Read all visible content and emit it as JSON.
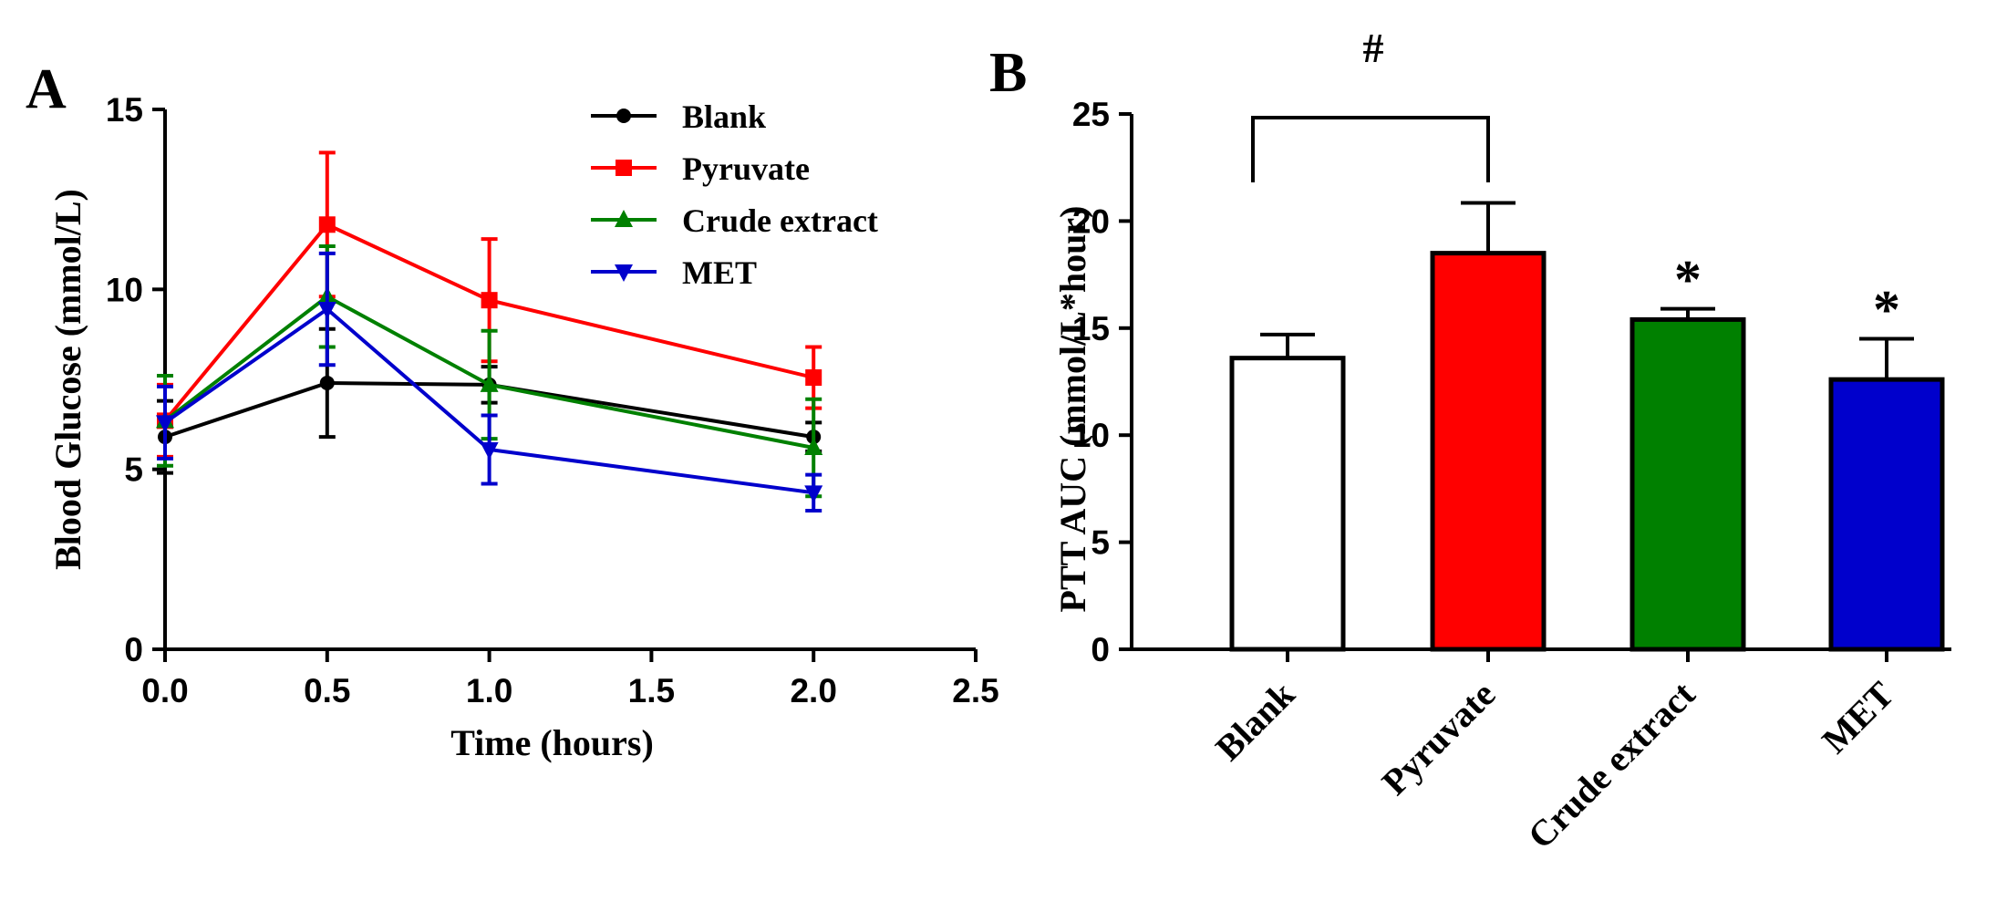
{
  "panels": {
    "a": {
      "label": "A"
    },
    "b": {
      "label": "B"
    }
  },
  "chart_data": [
    {
      "type": "line",
      "panel": "A",
      "title": "",
      "xlabel": "Time (hours)",
      "ylabel": "Blood Glucose (mmol/L)",
      "xlim": [
        0,
        2.5
      ],
      "ylim": [
        0,
        15
      ],
      "xticks": [
        "0.0",
        "0.5",
        "1.0",
        "1.5",
        "2.0",
        "2.5"
      ],
      "yticks": [
        "0",
        "5",
        "10",
        "15"
      ],
      "legend_position": "top-right",
      "x": [
        0,
        0.5,
        1.0,
        2.0
      ],
      "series": [
        {
          "name": "Blank",
          "color": "#000000",
          "marker": "circle",
          "values": [
            5.9,
            7.4,
            7.35,
            5.9
          ],
          "errors": [
            1.0,
            1.5,
            0.5,
            0.4
          ]
        },
        {
          "name": "Pyruvate",
          "color": "#ff0000",
          "marker": "square",
          "values": [
            6.35,
            11.8,
            9.7,
            7.55
          ],
          "errors": [
            1.0,
            2.0,
            1.7,
            0.85
          ]
        },
        {
          "name": "Crude extract",
          "color": "#008000",
          "marker": "triangle-up",
          "values": [
            6.35,
            9.8,
            7.35,
            5.6
          ],
          "errors": [
            1.25,
            1.4,
            1.5,
            1.35
          ]
        },
        {
          "name": "MET",
          "color": "#0000cc",
          "marker": "triangle-down",
          "values": [
            6.3,
            9.45,
            5.55,
            4.35
          ],
          "errors": [
            1.0,
            1.55,
            0.95,
            0.5
          ]
        }
      ]
    },
    {
      "type": "bar",
      "panel": "B",
      "title": "",
      "xlabel": "",
      "ylabel": "PTT AUC (mmol/L*hour)",
      "ylim": [
        0,
        25
      ],
      "yticks": [
        "0",
        "5",
        "10",
        "15",
        "20",
        "25"
      ],
      "categories": [
        "Blank",
        "Pyruvate",
        "Crude extract",
        "MET"
      ],
      "values": [
        13.6,
        18.5,
        15.4,
        12.6
      ],
      "errors": [
        1.1,
        2.35,
        0.5,
        1.9
      ],
      "colors": [
        "#ffffff",
        "#ff0000",
        "#008000",
        "#0000cc"
      ],
      "significance": [
        "",
        "",
        "*",
        "*"
      ],
      "bracket": {
        "from": "Blank",
        "to": "Pyruvate",
        "label": "#"
      }
    }
  ]
}
